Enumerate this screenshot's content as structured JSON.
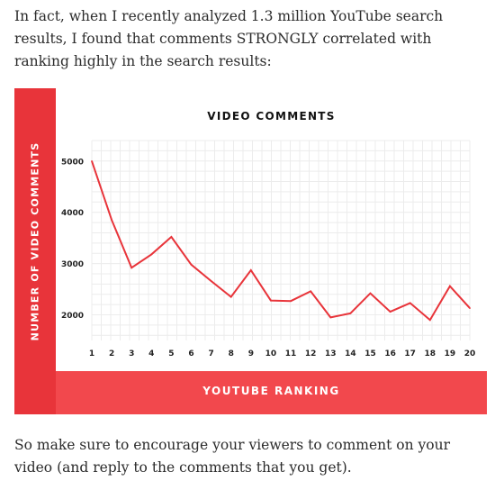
{
  "text": {
    "intro": "In fact, when I recently analyzed 1.3 million YouTube search results, I found that comments STRONGLY correlated with ranking highly in the search results:",
    "outro": "So make sure to encourage your viewers to comment on your video (and reply to the comments that you get)."
  },
  "colors": {
    "accent": "#e8343a",
    "line": "#e8343a",
    "band": "#f2484d"
  },
  "chart_data": {
    "type": "line",
    "title": "VIDEO COMMENTS",
    "xlabel": "YOUTUBE RANKING",
    "ylabel": "NUMBER OF VIDEO COMMENTS",
    "x": [
      1,
      2,
      3,
      4,
      5,
      6,
      7,
      8,
      9,
      10,
      11,
      12,
      13,
      14,
      15,
      16,
      17,
      18,
      19,
      20
    ],
    "series": [
      {
        "values": [
          5000,
          3850,
          2920,
          3180,
          3520,
          2980,
          2660,
          2350,
          2870,
          2280,
          2270,
          2460,
          1950,
          2030,
          2420,
          2060,
          2230,
          1900,
          2560,
          2130
        ]
      }
    ],
    "yticks": [
      2000,
      3000,
      4000,
      5000
    ],
    "ylim": [
      1500,
      5400
    ],
    "xlim": [
      1,
      20
    ],
    "grid": true
  }
}
